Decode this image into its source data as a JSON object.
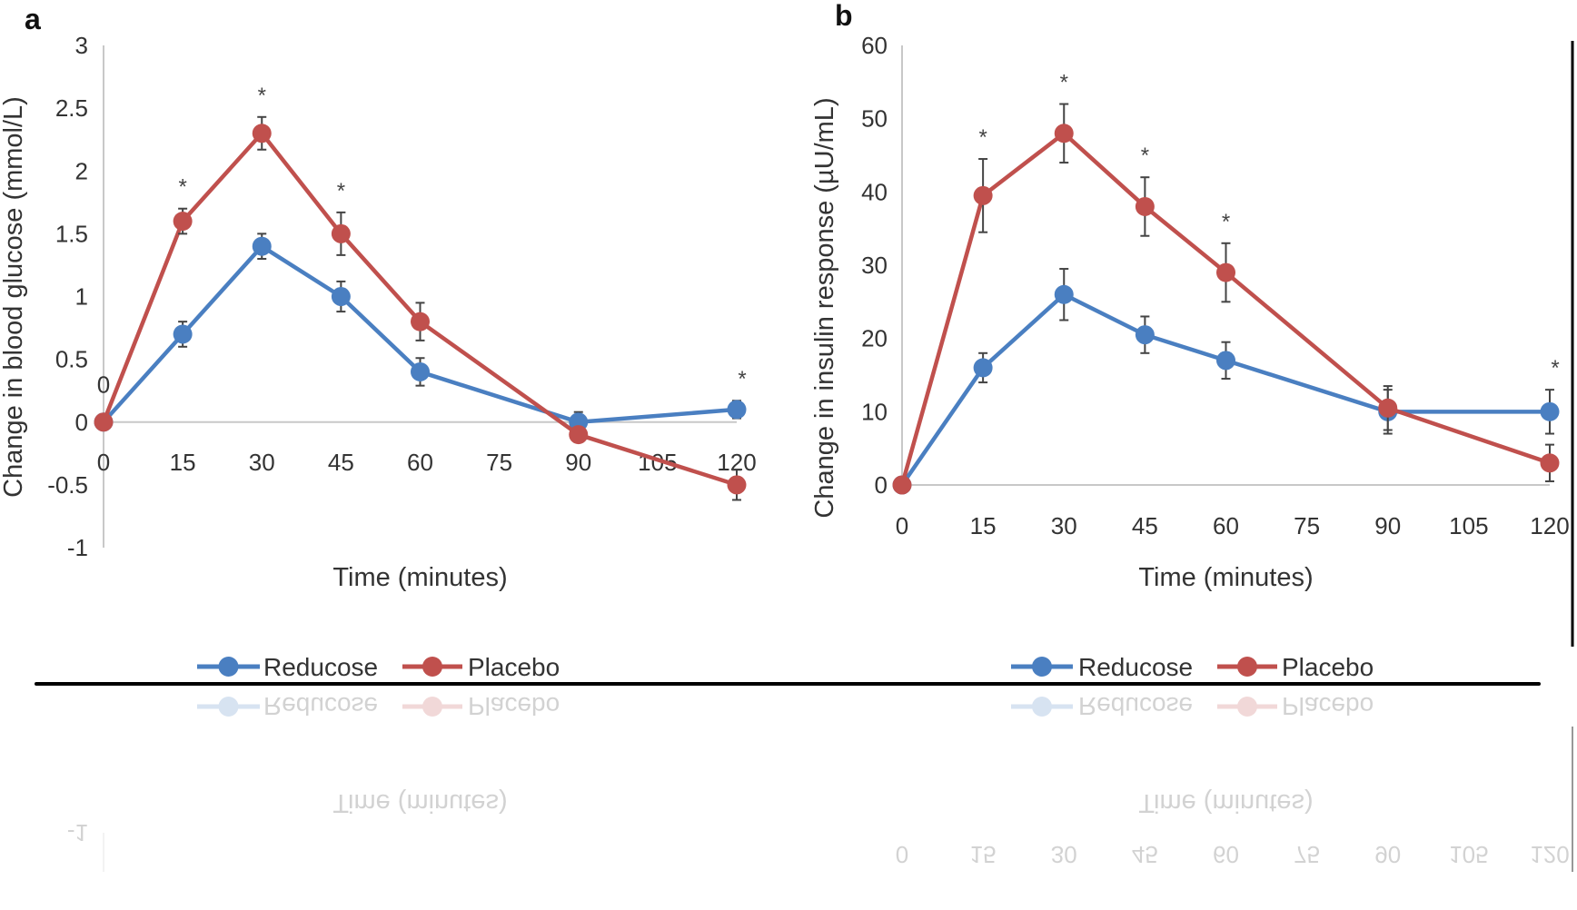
{
  "colors": {
    "reducose": "#4a7fc1",
    "placebo": "#c0504d",
    "error_bar": "#444444",
    "axis": "#c8c8c8"
  },
  "chart_data": [
    {
      "panel_label": "a",
      "type": "line",
      "xlabel": "Time (minutes)",
      "ylabel": "Change in blood glucose (mmol/L)",
      "x_ticks": [
        "0",
        "15",
        "30",
        "45",
        "60",
        "75",
        "90",
        "105",
        "120"
      ],
      "y_ticks": [
        "3",
        "2.5",
        "2",
        "1.5",
        "1",
        "0.5",
        "0",
        "-0.5",
        "-1"
      ],
      "xlim": [
        0,
        120
      ],
      "ylim": [
        -1,
        3
      ],
      "stray_label": "0",
      "legend": "bottom",
      "x": [
        0,
        15,
        30,
        45,
        60,
        90,
        120
      ],
      "series": [
        {
          "name": "Reducose",
          "values": [
            0,
            0.7,
            1.4,
            1.0,
            0.4,
            0.0,
            0.1
          ],
          "errors": [
            0,
            0.1,
            0.1,
            0.12,
            0.11,
            0.08,
            0.07
          ]
        },
        {
          "name": "Placebo",
          "values": [
            0,
            1.6,
            2.3,
            1.5,
            0.8,
            -0.1,
            -0.5
          ],
          "errors": [
            0,
            0.1,
            0.13,
            0.17,
            0.15,
            0.05,
            0.12
          ]
        }
      ],
      "significance_marker": "*",
      "significant_x": [
        15,
        30,
        45,
        120
      ]
    },
    {
      "panel_label": "b",
      "type": "line",
      "xlabel": "Time (minutes)",
      "ylabel": "Change in insulin response  (µU/mL)",
      "x_ticks": [
        "0",
        "15",
        "30",
        "45",
        "60",
        "75",
        "90",
        "105",
        "120"
      ],
      "y_ticks": [
        "60",
        "50",
        "40",
        "30",
        "20",
        "10",
        "0"
      ],
      "xlim": [
        0,
        120
      ],
      "ylim": [
        0,
        60
      ],
      "legend": "bottom",
      "x": [
        0,
        15,
        30,
        45,
        60,
        90,
        120
      ],
      "series": [
        {
          "name": "Reducose",
          "values": [
            0,
            16,
            26,
            20.5,
            17,
            10,
            10
          ],
          "errors": [
            0,
            2,
            3.5,
            2.5,
            2.5,
            3,
            3
          ]
        },
        {
          "name": "Placebo",
          "values": [
            0,
            39.5,
            48,
            38,
            29,
            10.5,
            3
          ],
          "errors": [
            0,
            5,
            4,
            4,
            4,
            3,
            2.5
          ]
        }
      ],
      "significance_marker": "*",
      "significant_x": [
        15,
        30,
        45,
        60,
        120
      ]
    }
  ]
}
